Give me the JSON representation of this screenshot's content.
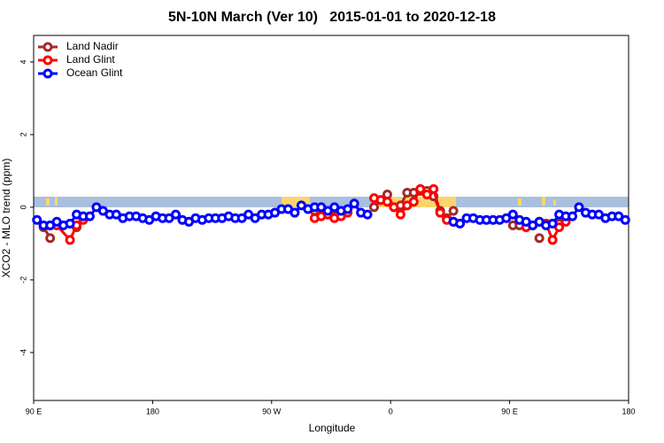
{
  "chart_data": {
    "type": "line",
    "title": "5N-10N March (Ver 10)   2015-01-01 to 2020-12-18",
    "xlabel": "Longitude",
    "ylabel": "XCO2 - MLO trend (ppm)",
    "xlim": [
      90,
      540
    ],
    "ylim": [
      -5.32,
      4.73
    ],
    "xticks": [
      {
        "value": 90,
        "label": "90 E"
      },
      180,
      {
        "value": 270,
        "label": "90 W"
      },
      {
        "value": 360,
        "label": "0"
      },
      {
        "value": 450,
        "label": "90 E"
      },
      {
        "value": 540,
        "label": "180"
      }
    ],
    "yticks": [
      -4,
      -2,
      0,
      2,
      4
    ],
    "legend": "top-left",
    "series": [
      {
        "name": "Land Nadir",
        "color": "#a52a2a",
        "x": [
          97.5,
          102.5,
          110,
          122.5,
          200,
          302.5,
          312.5,
          317.5,
          335,
          347.5,
          352.5,
          357.5,
          362.5,
          367.5,
          372.5,
          377.5,
          382.5,
          387.5,
          392.5,
          397.5,
          402.5,
          407.5,
          440,
          452.5,
          457.5,
          465,
          472.5,
          480,
          487.5,
          492.5
        ],
        "values": [
          -0.55,
          -0.85,
          null,
          -0.55,
          null,
          -0.1,
          -0.2,
          -0.05,
          null,
          0,
          0.2,
          0.35,
          0,
          0.05,
          0.4,
          0.4,
          0.45,
          0.45,
          0.3,
          -0.1,
          -0.3,
          -0.1,
          null,
          -0.5,
          -0.5,
          null,
          -0.85,
          null,
          -0.45,
          -0.3
        ]
      },
      {
        "name": "Land Glint",
        "color": "#ff0000",
        "x": [
          102.5,
          107.5,
          117.5,
          122.5,
          127.5,
          200,
          302.5,
          307.5,
          312.5,
          317.5,
          322.5,
          327.5,
          340,
          347.5,
          352.5,
          357.5,
          362.5,
          367.5,
          372.5,
          377.5,
          382.5,
          387.5,
          392.5,
          397.5,
          402.5,
          407.5,
          440,
          462.5,
          467.5,
          472.5,
          477.5,
          482.5,
          487.5,
          492.5
        ],
        "values": [
          -0.5,
          -0.5,
          -0.9,
          -0.5,
          -0.35,
          null,
          -0.3,
          -0.25,
          -0.2,
          -0.3,
          -0.25,
          -0.15,
          null,
          0.25,
          0.2,
          0.15,
          0,
          -0.2,
          0.05,
          0.15,
          0.5,
          0.35,
          0.5,
          -0.15,
          -0.35,
          -0.4,
          null,
          -0.55,
          -0.5,
          -0.4,
          -0.45,
          -0.9,
          -0.55,
          -0.4
        ]
      },
      {
        "name": "Ocean Glint",
        "color": "#0000ff",
        "x": [
          92.5,
          97.5,
          102.5,
          107.5,
          112.5,
          117.5,
          122.5,
          127.5,
          132.5,
          137.5,
          142.5,
          147.5,
          152.5,
          157.5,
          162.5,
          167.5,
          172.5,
          177.5,
          182.5,
          187.5,
          192.5,
          197.5,
          202.5,
          207.5,
          212.5,
          217.5,
          222.5,
          227.5,
          232.5,
          237.5,
          242.5,
          247.5,
          252.5,
          257.5,
          262.5,
          267.5,
          272.5,
          277.5,
          282.5,
          287.5,
          292.5,
          297.5,
          302.5,
          307.5,
          312.5,
          317.5,
          322.5,
          327.5,
          332.5,
          337.5,
          342.5,
          375,
          407.5,
          412.5,
          417.5,
          422.5,
          427.5,
          432.5,
          437.5,
          442.5,
          447.5,
          452.5,
          457.5,
          462.5,
          467.5,
          472.5,
          477.5,
          482.5,
          487.5,
          492.5,
          497.5,
          502.5,
          507.5,
          512.5,
          517.5,
          522.5,
          527.5,
          532.5,
          537.5
        ],
        "values": [
          -0.35,
          -0.5,
          -0.5,
          -0.4,
          -0.5,
          -0.45,
          -0.2,
          -0.25,
          -0.25,
          0,
          -0.1,
          -0.2,
          -0.2,
          -0.3,
          -0.25,
          -0.25,
          -0.3,
          -0.35,
          -0.25,
          -0.3,
          -0.3,
          -0.2,
          -0.35,
          -0.4,
          -0.3,
          -0.35,
          -0.3,
          -0.3,
          -0.3,
          -0.25,
          -0.3,
          -0.3,
          -0.2,
          -0.3,
          -0.2,
          -0.2,
          -0.15,
          -0.05,
          -0.05,
          -0.15,
          0.05,
          -0.05,
          0,
          0,
          -0.1,
          0,
          -0.1,
          -0.05,
          0.1,
          -0.15,
          -0.2,
          null,
          -0.4,
          -0.45,
          -0.3,
          -0.3,
          -0.35,
          -0.35,
          -0.35,
          -0.35,
          -0.3,
          -0.2,
          -0.35,
          -0.4,
          -0.5,
          -0.4,
          -0.5,
          -0.45,
          -0.2,
          -0.25,
          -0.25,
          0,
          -0.15,
          -0.2,
          -0.2,
          -0.3,
          -0.25,
          -0.25,
          -0.35
        ]
      }
    ]
  }
}
